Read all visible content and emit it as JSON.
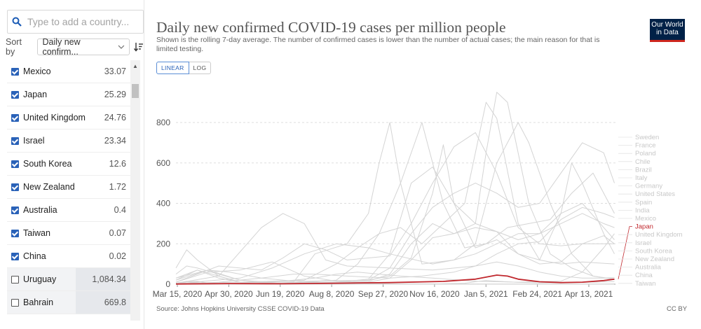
{
  "sidebar": {
    "search_placeholder": "Type to add a country...",
    "sort_label": "Sort by",
    "sort_value": "Daily new confirm...",
    "rows": [
      {
        "name": "Mexico",
        "value": "33.07",
        "checked": true
      },
      {
        "name": "Japan",
        "value": "25.29",
        "checked": true
      },
      {
        "name": "United Kingdom",
        "value": "24.76",
        "checked": true
      },
      {
        "name": "Israel",
        "value": "23.34",
        "checked": true
      },
      {
        "name": "South Korea",
        "value": "12.6",
        "checked": true
      },
      {
        "name": "New Zealand",
        "value": "1.72",
        "checked": true
      },
      {
        "name": "Australia",
        "value": "0.4",
        "checked": true
      },
      {
        "name": "Taiwan",
        "value": "0.07",
        "checked": true
      },
      {
        "name": "China",
        "value": "0.02",
        "checked": true
      },
      {
        "name": "Uruguay",
        "value": "1,084.34",
        "checked": false
      },
      {
        "name": "Bahrain",
        "value": "669.8",
        "checked": false
      }
    ]
  },
  "header": {
    "logo_line1": "Our World",
    "logo_line2": "in Data"
  },
  "toggles": {
    "linear": "LINEAR",
    "log": "LOG"
  },
  "footer": {
    "source": "Source: Johns Hopkins University CSSE COVID-19 Data",
    "license": "CC BY"
  },
  "colors": {
    "highlight": "#c0272d",
    "grey_line": "#d4d4d4",
    "accent": "#2a62b8"
  },
  "chart_data": {
    "type": "line",
    "title": "Daily new confirmed COVID-19 cases per million people",
    "subtitle": "Shown is the rolling 7-day average. The number of confirmed cases is lower than the number of actual cases; the main reason for that is limited testing.",
    "ylim": [
      0,
      800
    ],
    "yticks": [
      0,
      200,
      400,
      600,
      800
    ],
    "x_range": [
      "2020-03-15",
      "2021-04-30"
    ],
    "x_ticks": [
      "Mar 15, 2020",
      "Apr 30, 2020",
      "Jun 19, 2020",
      "Aug 8, 2020",
      "Sep 27, 2020",
      "Nov 16, 2020",
      "Jan 5, 2021",
      "Feb 24, 2021",
      "Apr 13, 2021"
    ],
    "highlighted": "Japan",
    "legend": [
      "Sweden",
      "France",
      "Poland",
      "Chile",
      "Brazil",
      "Italy",
      "Germany",
      "United States",
      "Spain",
      "India",
      "Mexico",
      "Japan",
      "United Kingdom",
      "Israel",
      "South Korea",
      "New Zealand",
      "Australia",
      "China",
      "Taiwan"
    ],
    "series": [
      {
        "name": "Japan",
        "x": [
          0,
          50,
          100,
          150,
          200,
          250,
          280,
          300,
          310,
          320,
          340,
          360,
          380,
          400,
          410
        ],
        "values": [
          1,
          3,
          2,
          5,
          8,
          14,
          25,
          45,
          40,
          25,
          12,
          8,
          10,
          18,
          25
        ]
      },
      {
        "name": "Sweden",
        "x": [
          0,
          30,
          60,
          90,
          120,
          150,
          180,
          200,
          220,
          240,
          260,
          280,
          300,
          320,
          340,
          360,
          380,
          400,
          410
        ],
        "values": [
          10,
          60,
          70,
          110,
          40,
          15,
          20,
          80,
          250,
          380,
          450,
          500,
          450,
          380,
          400,
          550,
          700,
          650,
          500
        ]
      },
      {
        "name": "France",
        "x": [
          0,
          20,
          40,
          60,
          100,
          150,
          170,
          190,
          210,
          230,
          250,
          270,
          290,
          310,
          330,
          350,
          370,
          390,
          410
        ],
        "values": [
          30,
          70,
          30,
          10,
          5,
          20,
          100,
          250,
          500,
          800,
          400,
          180,
          200,
          280,
          300,
          320,
          450,
          550,
          350
        ]
      },
      {
        "name": "Poland",
        "x": [
          0,
          60,
          120,
          180,
          200,
          220,
          240,
          250,
          260,
          280,
          300,
          320,
          340,
          360,
          370,
          380,
          400,
          410
        ],
        "values": [
          5,
          10,
          15,
          20,
          40,
          130,
          450,
          690,
          400,
          180,
          220,
          150,
          120,
          350,
          600,
          500,
          250,
          150
        ]
      },
      {
        "name": "Chile",
        "x": [
          0,
          40,
          80,
          100,
          120,
          140,
          160,
          200,
          240,
          280,
          300,
          320,
          340,
          360,
          380,
          400,
          410
        ],
        "values": [
          5,
          40,
          280,
          350,
          300,
          120,
          90,
          80,
          70,
          90,
          150,
          200,
          210,
          320,
          380,
          350,
          330
        ]
      },
      {
        "name": "Brazil",
        "x": [
          0,
          60,
          90,
          120,
          150,
          180,
          200,
          240,
          260,
          280,
          300,
          320,
          340,
          360,
          380,
          400,
          410
        ],
        "values": [
          2,
          30,
          80,
          150,
          200,
          180,
          150,
          100,
          120,
          150,
          200,
          250,
          250,
          300,
          350,
          300,
          280
        ]
      },
      {
        "name": "Italy",
        "x": [
          0,
          10,
          20,
          40,
          60,
          100,
          150,
          180,
          200,
          220,
          240,
          260,
          280,
          300,
          320,
          340,
          360,
          380,
          400,
          410
        ],
        "values": [
          50,
          90,
          80,
          50,
          20,
          5,
          10,
          25,
          150,
          500,
          580,
          400,
          300,
          260,
          220,
          250,
          350,
          400,
          280,
          220
        ]
      },
      {
        "name": "Germany",
        "x": [
          0,
          20,
          40,
          60,
          120,
          180,
          200,
          220,
          240,
          260,
          280,
          300,
          320,
          340,
          360,
          380,
          400,
          410
        ],
        "values": [
          20,
          70,
          40,
          10,
          5,
          10,
          30,
          120,
          230,
          250,
          280,
          260,
          150,
          100,
          110,
          200,
          240,
          200
        ]
      },
      {
        "name": "United States",
        "x": [
          0,
          40,
          80,
          100,
          120,
          140,
          160,
          200,
          220,
          240,
          260,
          280,
          300,
          320,
          340,
          360,
          380,
          410
        ],
        "values": [
          10,
          90,
          70,
          130,
          200,
          170,
          120,
          140,
          300,
          500,
          680,
          750,
          550,
          280,
          200,
          190,
          200,
          200
        ]
      },
      {
        "name": "Spain",
        "x": [
          0,
          10,
          20,
          40,
          60,
          120,
          150,
          170,
          190,
          210,
          230,
          250,
          270,
          290,
          300,
          320,
          340,
          360,
          380,
          410
        ],
        "values": [
          80,
          170,
          120,
          40,
          10,
          20,
          100,
          180,
          250,
          280,
          200,
          300,
          400,
          900,
          820,
          300,
          120,
          100,
          110,
          100
        ]
      },
      {
        "name": "India",
        "x": [
          0,
          60,
          100,
          130,
          150,
          170,
          190,
          210,
          240,
          280,
          320,
          360,
          380,
          400,
          410
        ],
        "values": [
          0,
          5,
          15,
          30,
          50,
          60,
          50,
          40,
          30,
          15,
          10,
          15,
          60,
          180,
          250
        ]
      },
      {
        "name": "Mexico",
        "x": [
          0,
          40,
          80,
          110,
          130,
          160,
          200,
          230,
          260,
          280,
          300,
          320,
          340,
          360,
          380,
          400,
          410
        ],
        "values": [
          0,
          10,
          30,
          50,
          50,
          40,
          30,
          40,
          60,
          90,
          110,
          90,
          60,
          40,
          30,
          30,
          33
        ]
      },
      {
        "name": "United Kingdom",
        "x": [
          0,
          30,
          50,
          80,
          120,
          150,
          180,
          200,
          220,
          240,
          260,
          280,
          290,
          300,
          310,
          330,
          350,
          370,
          390,
          410
        ],
        "values": [
          20,
          70,
          60,
          30,
          10,
          10,
          15,
          50,
          200,
          300,
          250,
          300,
          650,
          950,
          900,
          400,
          150,
          80,
          40,
          25
        ]
      },
      {
        "name": "Israel",
        "x": [
          0,
          30,
          60,
          90,
          110,
          130,
          160,
          180,
          190,
          200,
          210,
          230,
          260,
          280,
          300,
          320,
          330,
          350,
          370,
          390,
          410
        ],
        "values": [
          30,
          70,
          20,
          5,
          10,
          150,
          200,
          350,
          600,
          800,
          500,
          100,
          120,
          200,
          600,
          800,
          700,
          400,
          150,
          40,
          23
        ]
      },
      {
        "name": "South Korea",
        "x": [
          0,
          20,
          40,
          80,
          120,
          150,
          170,
          200,
          240,
          270,
          280,
          290,
          300,
          320,
          340,
          360,
          380,
          400,
          410
        ],
        "values": [
          5,
          8,
          3,
          1,
          2,
          1,
          4,
          2,
          1,
          5,
          12,
          18,
          15,
          9,
          7,
          8,
          9,
          11,
          12.6
        ]
      },
      {
        "name": "New Zealand",
        "x": [
          0,
          10,
          20,
          30,
          50,
          100,
          150,
          200,
          250,
          300,
          350,
          400,
          410
        ],
        "values": [
          2,
          12,
          15,
          6,
          1,
          0,
          1,
          0,
          1,
          1,
          1,
          1,
          1.7
        ]
      },
      {
        "name": "Australia",
        "x": [
          0,
          10,
          20,
          30,
          50,
          100,
          120,
          140,
          160,
          180,
          200,
          250,
          300,
          350,
          410
        ],
        "values": [
          5,
          15,
          8,
          3,
          1,
          1,
          8,
          18,
          14,
          5,
          2,
          1,
          0.5,
          0.5,
          0.4
        ]
      },
      {
        "name": "China",
        "x": [
          0,
          20,
          40,
          100,
          200,
          300,
          410
        ],
        "values": [
          0.5,
          0.3,
          0.1,
          0.05,
          0.05,
          0.05,
          0.02
        ]
      },
      {
        "name": "Taiwan",
        "x": [
          0,
          20,
          40,
          100,
          200,
          300,
          410
        ],
        "values": [
          0.3,
          0.5,
          0.1,
          0.05,
          0.05,
          0.1,
          0.07
        ]
      }
    ]
  }
}
